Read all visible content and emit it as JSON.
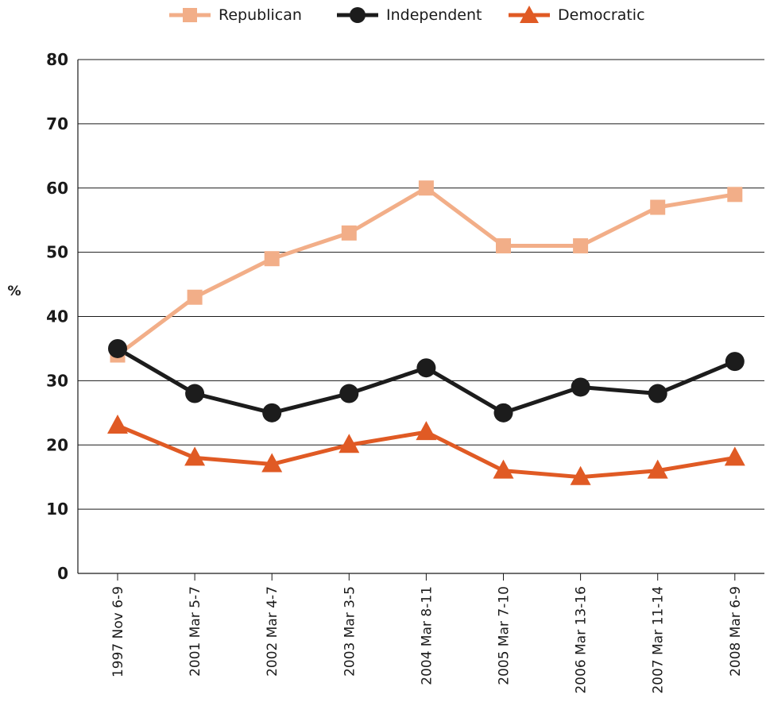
{
  "chart_data": {
    "type": "line",
    "title": "",
    "xlabel": "",
    "ylabel": "%",
    "ylim": [
      0,
      80
    ],
    "yticks": [
      "0",
      "10",
      "20",
      "30",
      "40",
      "50",
      "60",
      "70",
      "80"
    ],
    "grid": "horizontal",
    "legend_position": "top",
    "categories": [
      "1997 Nov 6-9",
      "2001 Mar 5-7",
      "2002 Mar 4-7",
      "2003 Mar 3-5",
      "2004 Mar 8-11",
      "2005 Mar 7-10",
      "2006 Mar 13-16",
      "2007 Mar 11-14",
      "2008 Mar 6-9"
    ],
    "series": [
      {
        "name": "Republican",
        "color": "#F2AE88",
        "marker": "square",
        "values": [
          34,
          43,
          49,
          53,
          60,
          51,
          51,
          57,
          59
        ]
      },
      {
        "name": "Independent",
        "color": "#1C1C1C",
        "marker": "circle",
        "values": [
          35,
          28,
          25,
          28,
          32,
          25,
          29,
          28,
          33
        ]
      },
      {
        "name": "Democratic",
        "color": "#E05A24",
        "marker": "triangle",
        "values": [
          23,
          18,
          17,
          20,
          22,
          16,
          15,
          16,
          18
        ]
      }
    ]
  }
}
